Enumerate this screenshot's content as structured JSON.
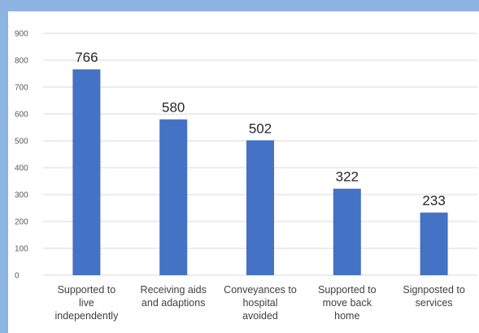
{
  "chart_data": {
    "type": "bar",
    "title": "",
    "xlabel": "",
    "ylabel": "",
    "categories": [
      [
        "Supported to",
        "live",
        "independently"
      ],
      [
        "Receiving aids",
        "and adaptions"
      ],
      [
        "Conveyances to",
        "hospital",
        "avoided"
      ],
      [
        "Supported to",
        "move back",
        "home"
      ],
      [
        "Signposted to",
        "services"
      ]
    ],
    "values": [
      766,
      580,
      502,
      322,
      233
    ],
    "ylim": [
      0,
      900
    ],
    "yticks": [
      0,
      100,
      200,
      300,
      400,
      500,
      600,
      700,
      800,
      900
    ],
    "grid": true,
    "legend": "none",
    "data_labels": true,
    "colors": {
      "bar": "#4472c4",
      "grid": "#d9d9d9",
      "frame": "#8eb4e3"
    }
  }
}
